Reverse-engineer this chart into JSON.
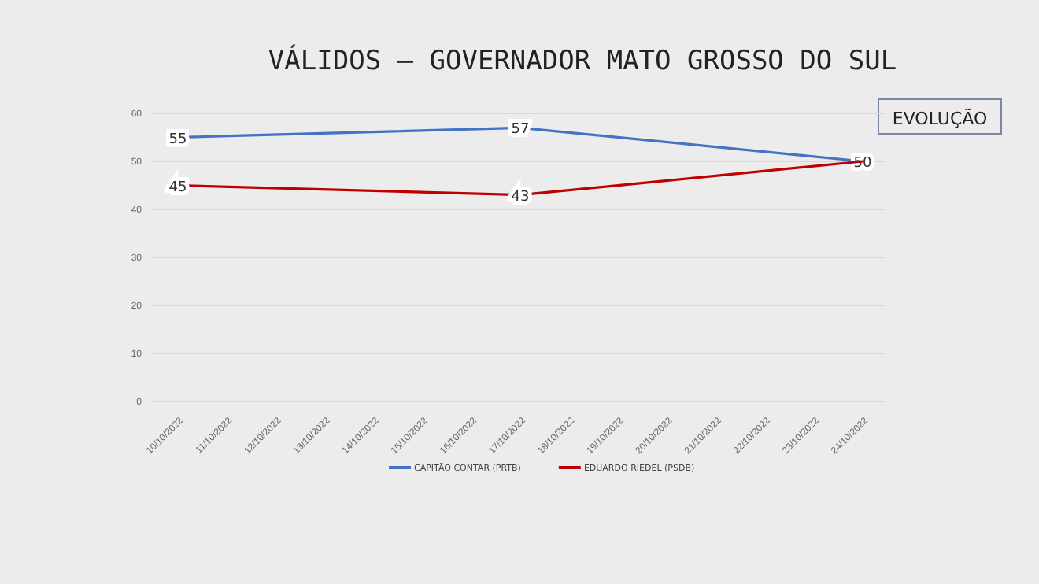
{
  "chart_data": {
    "type": "line",
    "title": "VÁLIDOS – GOVERNADOR MATO GROSSO DO SUL",
    "annotations": [
      "EVOLUÇÃO"
    ],
    "categories": [
      "10/10/2022",
      "11/10/2022",
      "12/10/2022",
      "13/10/2022",
      "14/10/2022",
      "15/10/2022",
      "16/10/2022",
      "17/10/2022",
      "18/10/2022",
      "19/10/2022",
      "20/10/2022",
      "21/10/2022",
      "22/10/2022",
      "23/10/2022",
      "24/10/2022"
    ],
    "series": [
      {
        "name": "CAPITÃO CONTAR (PRTB)",
        "color": "#4472c4",
        "values": [
          55,
          null,
          null,
          null,
          null,
          null,
          null,
          57,
          null,
          null,
          null,
          null,
          null,
          null,
          50
        ],
        "value_labels": [
          "55",
          null,
          null,
          null,
          null,
          null,
          null,
          "57",
          null,
          null,
          null,
          null,
          null,
          null,
          "50"
        ]
      },
      {
        "name": "EDUARDO RIEDEL (PSDB)",
        "color": "#c00000",
        "values": [
          45,
          null,
          null,
          null,
          null,
          null,
          null,
          43,
          null,
          null,
          null,
          null,
          null,
          null,
          50
        ],
        "value_labels": [
          "45",
          null,
          null,
          null,
          null,
          null,
          null,
          "43",
          null,
          null,
          null,
          null,
          null,
          null,
          null
        ]
      }
    ],
    "ylim": [
      0,
      60
    ],
    "yticks": [
      0,
      10,
      20,
      30,
      40,
      50,
      60
    ],
    "grid": "y",
    "legend": "bottom"
  }
}
